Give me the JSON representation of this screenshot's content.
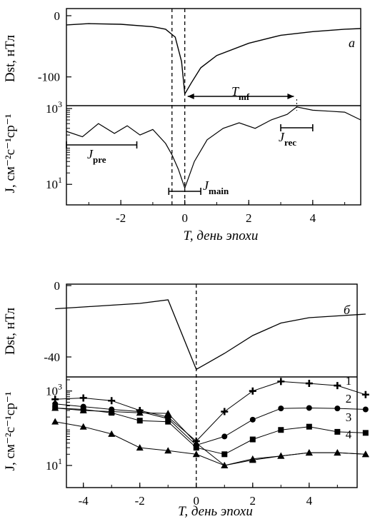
{
  "figure": {
    "top": {
      "panel_letter": "a",
      "dst_axis_label": "Dst, нТл",
      "j_axis_label": "J, см⁻²с⁻¹ср⁻¹",
      "x_axis_label": "T, день эпохи",
      "annotations": {
        "t_mf": "Tmf",
        "j_pre": "Jpre",
        "j_main": "Jmain",
        "j_rec": "Jrec"
      }
    },
    "bottom": {
      "panel_letter": "б",
      "dst_axis_label": "Dst, нТл",
      "j_axis_label": "J, см⁻²с⁻¹ср⁻¹",
      "x_axis_label": "T, день эпохи",
      "curve_numbers": [
        "1",
        "2",
        "3",
        "4"
      ]
    }
  },
  "chart_data": [
    {
      "type": "line",
      "panel": "a",
      "title": "",
      "xlabel": "T, день эпохи",
      "ylabel": "Dst, нТл",
      "xlim": [
        -3.7,
        5.5
      ],
      "ylim": [
        -140,
        0
      ],
      "yticks": [
        0,
        -100
      ],
      "xticks": [
        -2,
        0,
        2,
        4
      ],
      "x": [
        -3.7,
        -3.0,
        -2.0,
        -1.0,
        -0.6,
        -0.3,
        -0.1,
        0.0,
        0.2,
        0.5,
        1.0,
        2.0,
        3.0,
        4.0,
        5.0,
        5.5
      ],
      "values": [
        -15,
        -13,
        -14,
        -18,
        -22,
        -35,
        -75,
        -128,
        -110,
        -85,
        -65,
        -45,
        -32,
        -26,
        -22,
        -21
      ],
      "vlines": [
        -0.4,
        0.0
      ],
      "grid": false
    },
    {
      "type": "line",
      "panel": "a",
      "xlabel": "T, день эпохи",
      "ylabel": "J, см⁻²с⁻¹ср⁻¹",
      "xlim": [
        -3.7,
        5.5
      ],
      "ylim": [
        6,
        1000
      ],
      "yscale": "log",
      "yticks": [
        10,
        1000
      ],
      "xticks": [
        -2,
        0,
        2,
        4
      ],
      "x": [
        -3.7,
        -3.2,
        -2.7,
        -2.2,
        -1.8,
        -1.4,
        -1.0,
        -0.6,
        -0.4,
        -0.2,
        0.0,
        0.3,
        0.7,
        1.2,
        1.7,
        2.2,
        2.7,
        3.2,
        3.5,
        4.0,
        4.5,
        5.0,
        5.5
      ],
      "values": [
        250,
        180,
        400,
        220,
        350,
        200,
        280,
        120,
        60,
        25,
        8,
        40,
        150,
        300,
        420,
        300,
        500,
        700,
        1100,
        900,
        850,
        800,
        500
      ],
      "intervals": {
        "j_pre": [
          -3.7,
          -1.5
        ],
        "j_main": [
          -0.5,
          0.5
        ],
        "j_rec": [
          3.0,
          4.0
        ],
        "t_mf": [
          0.0,
          3.5
        ]
      },
      "grid": false
    },
    {
      "type": "line",
      "panel": "б",
      "xlabel": "T, день эпохи",
      "ylabel": "Dst, нТл",
      "xlim": [
        -5,
        6
      ],
      "ylim": [
        -50,
        0
      ],
      "yticks": [
        0,
        -40
      ],
      "xticks": [
        -4,
        -2,
        0,
        2,
        4
      ],
      "x": [
        -5,
        -4,
        -3,
        -2,
        -1,
        0,
        1,
        2,
        3,
        4,
        5,
        6
      ],
      "values": [
        -13,
        -12,
        -11,
        -10,
        -8,
        -47,
        -38,
        -28,
        -21,
        -18,
        -17,
        -16
      ],
      "vlines": [
        0
      ],
      "grid": false
    },
    {
      "type": "line",
      "panel": "б",
      "xlabel": "T, день эпохи",
      "ylabel": "J, см⁻²с⁻¹ср⁻¹",
      "xlim": [
        -5,
        6
      ],
      "ylim": [
        10,
        2000
      ],
      "yscale": "log",
      "yticks": [
        10,
        1000
      ],
      "xticks": [
        -4,
        -2,
        0,
        2,
        4
      ],
      "x": [
        -5,
        -4,
        -3,
        -2,
        -1,
        0,
        1,
        2,
        3,
        4,
        5,
        6
      ],
      "series": [
        {
          "name": "1",
          "marker": "plus",
          "values": [
            600,
            650,
            550,
            300,
            200,
            45,
            280,
            1000,
            1800,
            1600,
            1400,
            800
          ]
        },
        {
          "name": "2",
          "marker": "circle",
          "values": [
            450,
            380,
            320,
            280,
            180,
            35,
            60,
            170,
            340,
            350,
            340,
            320
          ]
        },
        {
          "name": "3",
          "marker": "square",
          "values": [
            350,
            320,
            260,
            160,
            150,
            30,
            20,
            50,
            90,
            110,
            80,
            75
          ]
        },
        {
          "name": "4",
          "marker": "triangle",
          "values": [
            150,
            110,
            70,
            30,
            25,
            20,
            10,
            15,
            18,
            22,
            22,
            20
          ]
        },
        {
          "name": "",
          "marker": "triangle",
          "values": [
            350,
            300,
            280,
            260,
            250,
            40,
            10,
            14,
            18,
            22,
            22,
            20
          ]
        }
      ],
      "vlines": [
        0
      ],
      "grid": false
    }
  ]
}
